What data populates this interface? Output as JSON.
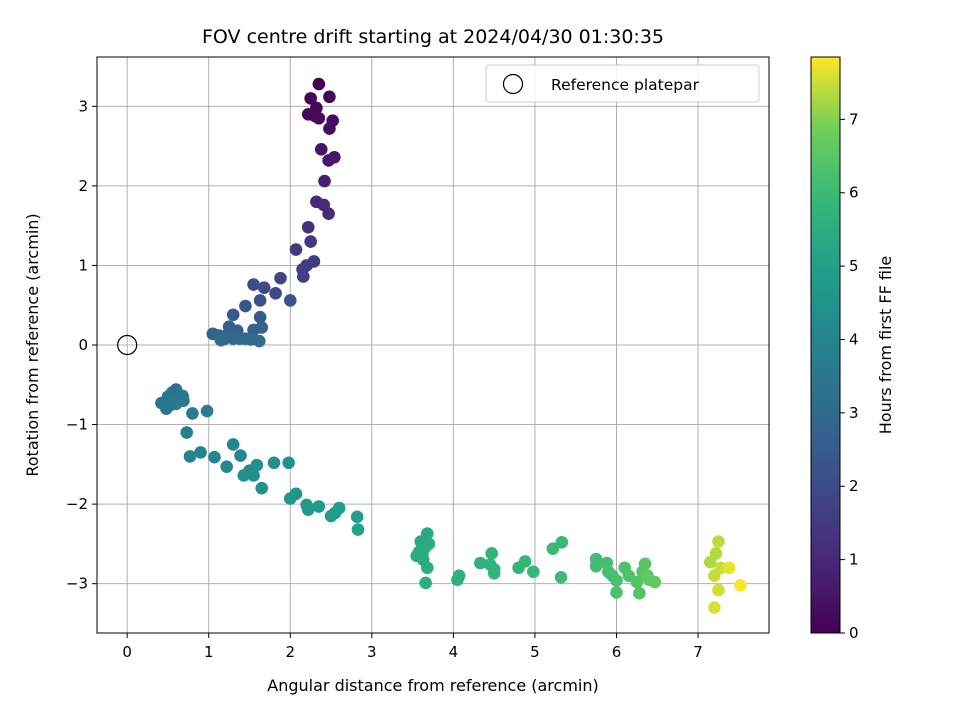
{
  "chart_data": {
    "type": "scatter",
    "title": "FOV centre drift starting at 2024/04/30 01:30:35",
    "xlabel": "Angular distance from reference (arcmin)",
    "ylabel": "Rotation from reference (arcmin)",
    "xlim": [
      -0.37,
      7.87
    ],
    "ylim": [
      -3.62,
      3.62
    ],
    "xticks": [
      0,
      1,
      2,
      3,
      4,
      5,
      6,
      7
    ],
    "yticks": [
      -3,
      -2,
      -1,
      0,
      1,
      2,
      3
    ],
    "xtick_labels": [
      "0",
      "1",
      "2",
      "3",
      "4",
      "5",
      "6",
      "7"
    ],
    "ytick_labels": [
      "−3",
      "−2",
      "−1",
      "0",
      "1",
      "2",
      "3"
    ],
    "grid": true,
    "legend": {
      "placement": "top-right",
      "entries": [
        {
          "label": "Reference platepar",
          "marker": "open-circle"
        }
      ]
    },
    "reference_point": {
      "x": 0,
      "y": 0
    },
    "colorbar": {
      "label": "Hours from first FF file",
      "min": 0,
      "max": 7.85,
      "ticks": [
        0,
        1,
        2,
        3,
        4,
        5,
        6,
        7
      ],
      "colormap": "viridis"
    },
    "points": [
      [
        2.35,
        3.28,
        0.05
      ],
      [
        2.25,
        3.1,
        0.1
      ],
      [
        2.48,
        3.12,
        0.12
      ],
      [
        2.32,
        2.98,
        0.15
      ],
      [
        2.22,
        2.9,
        0.2
      ],
      [
        2.3,
        2.88,
        0.22
      ],
      [
        2.35,
        2.85,
        0.25
      ],
      [
        2.52,
        2.82,
        0.3
      ],
      [
        2.48,
        2.72,
        0.35
      ],
      [
        2.38,
        2.46,
        0.5
      ],
      [
        2.54,
        2.36,
        0.55
      ],
      [
        2.47,
        2.32,
        0.6
      ],
      [
        2.42,
        2.06,
        0.8
      ],
      [
        2.32,
        1.8,
        1.0
      ],
      [
        2.41,
        1.76,
        1.05
      ],
      [
        2.47,
        1.65,
        1.1
      ],
      [
        2.22,
        1.48,
        1.2
      ],
      [
        2.25,
        1.3,
        1.35
      ],
      [
        2.07,
        1.2,
        1.45
      ],
      [
        2.29,
        1.05,
        1.55
      ],
      [
        2.2,
        1.0,
        1.6
      ],
      [
        2.15,
        0.95,
        1.65
      ],
      [
        2.16,
        0.86,
        1.7
      ],
      [
        1.88,
        0.84,
        1.85
      ],
      [
        1.68,
        0.72,
        1.95
      ],
      [
        1.82,
        0.65,
        2.0
      ],
      [
        1.55,
        0.76,
        2.1
      ],
      [
        1.63,
        0.56,
        2.2
      ],
      [
        2.0,
        0.56,
        2.25
      ],
      [
        1.45,
        0.49,
        2.35
      ],
      [
        1.3,
        0.38,
        2.45
      ],
      [
        1.63,
        0.35,
        2.5
      ],
      [
        1.25,
        0.23,
        2.6
      ],
      [
        1.35,
        0.18,
        2.65
      ],
      [
        1.55,
        0.19,
        2.7
      ],
      [
        1.65,
        0.22,
        2.72
      ],
      [
        1.05,
        0.14,
        2.8
      ],
      [
        1.12,
        0.12,
        2.85
      ],
      [
        1.22,
        0.12,
        2.88
      ],
      [
        1.2,
        0.08,
        2.9
      ],
      [
        1.3,
        0.08,
        2.95
      ],
      [
        1.38,
        0.08,
        3.0
      ],
      [
        1.45,
        0.08,
        3.02
      ],
      [
        1.52,
        0.07,
        3.05
      ],
      [
        1.62,
        0.05,
        3.1
      ],
      [
        1.15,
        0.06,
        3.12
      ],
      [
        0.6,
        -0.56,
        3.35
      ],
      [
        0.55,
        -0.6,
        3.38
      ],
      [
        0.5,
        -0.65,
        3.4
      ],
      [
        0.48,
        -0.7,
        3.42
      ],
      [
        0.55,
        -0.7,
        3.45
      ],
      [
        0.42,
        -0.73,
        3.48
      ],
      [
        0.52,
        -0.76,
        3.5
      ],
      [
        0.6,
        -0.74,
        3.52
      ],
      [
        0.48,
        -0.8,
        3.55
      ],
      [
        0.68,
        -0.64,
        3.58
      ],
      [
        0.69,
        -0.7,
        3.6
      ],
      [
        0.8,
        -0.86,
        3.7
      ],
      [
        0.98,
        -0.83,
        3.75
      ],
      [
        0.73,
        -1.1,
        3.85
      ],
      [
        0.9,
        -1.35,
        3.95
      ],
      [
        0.77,
        -1.4,
        4.0
      ],
      [
        1.07,
        -1.41,
        4.05
      ],
      [
        1.3,
        -1.25,
        4.1
      ],
      [
        1.39,
        -1.39,
        4.15
      ],
      [
        1.22,
        -1.53,
        4.2
      ],
      [
        1.5,
        -1.58,
        4.3
      ],
      [
        1.43,
        -1.64,
        4.35
      ],
      [
        1.55,
        -1.64,
        4.38
      ],
      [
        1.59,
        -1.51,
        4.4
      ],
      [
        1.8,
        -1.48,
        4.45
      ],
      [
        1.65,
        -1.8,
        4.5
      ],
      [
        1.98,
        -1.48,
        4.55
      ],
      [
        2.07,
        -1.87,
        4.6
      ],
      [
        2.0,
        -1.93,
        4.65
      ],
      [
        2.2,
        -2.01,
        4.7
      ],
      [
        2.22,
        -2.07,
        4.75
      ],
      [
        2.35,
        -2.03,
        4.8
      ],
      [
        2.55,
        -2.11,
        4.85
      ],
      [
        2.5,
        -2.15,
        4.88
      ],
      [
        2.6,
        -2.05,
        4.92
      ],
      [
        2.82,
        -2.16,
        5.0
      ],
      [
        2.83,
        -2.32,
        5.05
      ],
      [
        3.6,
        -2.47,
        5.3
      ],
      [
        3.68,
        -2.37,
        5.32
      ],
      [
        3.58,
        -2.6,
        5.35
      ],
      [
        3.65,
        -2.55,
        5.38
      ],
      [
        3.55,
        -2.65,
        5.4
      ],
      [
        3.63,
        -2.7,
        5.42
      ],
      [
        3.7,
        -2.5,
        5.45
      ],
      [
        3.62,
        -2.62,
        5.48
      ],
      [
        3.68,
        -2.8,
        5.5
      ],
      [
        3.66,
        -2.99,
        5.52
      ],
      [
        4.07,
        -2.9,
        5.6
      ],
      [
        4.05,
        -2.95,
        5.62
      ],
      [
        4.33,
        -2.74,
        5.7
      ],
      [
        4.45,
        -2.76,
        5.72
      ],
      [
        4.47,
        -2.62,
        5.75
      ],
      [
        4.5,
        -2.82,
        5.78
      ],
      [
        4.5,
        -2.87,
        5.8
      ],
      [
        4.8,
        -2.8,
        5.85
      ],
      [
        4.88,
        -2.72,
        5.88
      ],
      [
        4.98,
        -2.85,
        5.9
      ],
      [
        5.22,
        -2.56,
        5.95
      ],
      [
        5.33,
        -2.48,
        5.98
      ],
      [
        5.32,
        -2.92,
        6.0
      ],
      [
        5.75,
        -2.69,
        6.1
      ],
      [
        5.75,
        -2.78,
        6.12
      ],
      [
        5.88,
        -2.74,
        6.15
      ],
      [
        5.9,
        -2.85,
        6.18
      ],
      [
        5.95,
        -2.9,
        6.2
      ],
      [
        6.0,
        -2.96,
        6.25
      ],
      [
        6.0,
        -3.11,
        6.28
      ],
      [
        6.1,
        -2.8,
        6.3
      ],
      [
        6.15,
        -2.9,
        6.35
      ],
      [
        6.25,
        -2.98,
        6.4
      ],
      [
        6.28,
        -3.12,
        6.42
      ],
      [
        6.32,
        -2.85,
        6.45
      ],
      [
        6.35,
        -2.75,
        6.5
      ],
      [
        6.38,
        -2.9,
        6.55
      ],
      [
        6.4,
        -2.95,
        6.6
      ],
      [
        6.47,
        -2.98,
        6.65
      ],
      [
        7.15,
        -2.73,
        7.3
      ],
      [
        7.22,
        -2.62,
        7.35
      ],
      [
        7.25,
        -2.47,
        7.4
      ],
      [
        7.2,
        -2.9,
        7.45
      ],
      [
        7.28,
        -2.8,
        7.5
      ],
      [
        7.25,
        -3.08,
        7.55
      ],
      [
        7.2,
        -3.3,
        7.6
      ],
      [
        7.38,
        -2.8,
        7.7
      ],
      [
        7.52,
        -3.02,
        7.8
      ]
    ]
  }
}
